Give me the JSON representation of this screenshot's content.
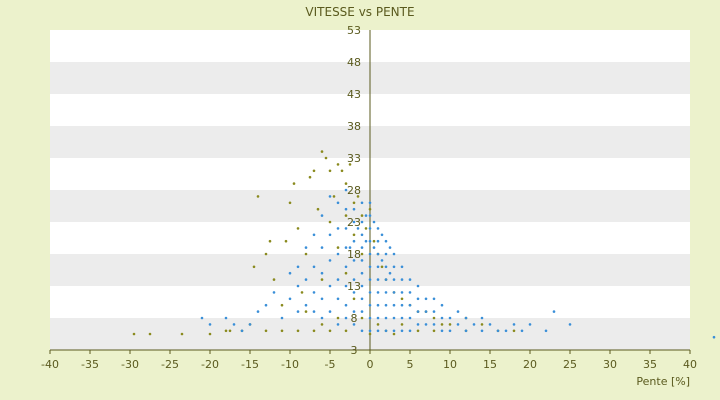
{
  "chart_data": {
    "type": "scatter",
    "title": "VITESSE vs PENTE",
    "xlabel": "Pente [%]",
    "ylabel": "",
    "xlim": [
      -40,
      40
    ],
    "ylim": [
      3,
      53
    ],
    "x_ticks": [
      -40,
      -35,
      -30,
      -25,
      -20,
      -15,
      -10,
      -5,
      0,
      5,
      10,
      15,
      20,
      25,
      30,
      35,
      40
    ],
    "y_ticks": [
      3,
      8,
      13,
      18,
      23,
      28,
      33,
      38,
      43,
      48,
      53
    ],
    "grid": "horizontal alternating bands",
    "legend": "none",
    "colors": {
      "background": "#ecf2cc",
      "band_light": "#ffffff",
      "band_dark": "#ececec",
      "axis": "#5a5a1e",
      "series_blue": "#3a8fd8",
      "series_olive": "#8a8a1e"
    },
    "series": [
      {
        "color": "#8a8a1e",
        "points": [
          [
            -29.5,
            5.5
          ],
          [
            -27.5,
            5.5
          ],
          [
            -23.5,
            5.5
          ],
          [
            -20,
            5.5
          ],
          [
            -17.5,
            6
          ],
          [
            -15,
            7
          ],
          [
            -14.5,
            16
          ],
          [
            -14,
            27
          ],
          [
            -13,
            18
          ],
          [
            -12.5,
            20
          ],
          [
            -12,
            14
          ],
          [
            -11,
            10
          ],
          [
            -10.5,
            20
          ],
          [
            -10,
            26
          ],
          [
            -9.5,
            29
          ],
          [
            -9,
            22
          ],
          [
            -8.5,
            12
          ],
          [
            -8,
            18
          ],
          [
            -7.5,
            30
          ],
          [
            -7,
            31
          ],
          [
            -6.5,
            25
          ],
          [
            -6,
            34
          ],
          [
            -5.5,
            33
          ],
          [
            -5,
            31
          ],
          [
            -5,
            23
          ],
          [
            -4.5,
            27
          ],
          [
            -4,
            19
          ],
          [
            -4,
            32
          ],
          [
            -3.5,
            31
          ],
          [
            -3,
            24
          ],
          [
            -3,
            29
          ],
          [
            -2.5,
            32
          ],
          [
            -2,
            26
          ],
          [
            -2,
            21
          ],
          [
            -1.5,
            27
          ],
          [
            -1,
            24
          ],
          [
            -1,
            18
          ],
          [
            -0.5,
            22
          ],
          [
            0,
            25
          ],
          [
            0.5,
            20
          ],
          [
            1,
            18
          ],
          [
            1.5,
            16
          ],
          [
            2,
            14
          ],
          [
            3,
            12
          ],
          [
            4,
            11
          ],
          [
            5,
            10
          ],
          [
            6,
            9
          ],
          [
            7,
            9
          ],
          [
            8,
            8
          ],
          [
            9,
            7
          ],
          [
            10,
            7
          ],
          [
            12,
            6
          ],
          [
            -6,
            14
          ],
          [
            -8,
            9
          ],
          [
            -3,
            15
          ],
          [
            -2,
            11
          ],
          [
            -1,
            8
          ],
          [
            1,
            7
          ],
          [
            2,
            6
          ],
          [
            3,
            5.5
          ],
          [
            -4,
            8
          ],
          [
            -5,
            6
          ],
          [
            -6,
            7
          ],
          [
            -7,
            6
          ],
          [
            -9,
            6
          ],
          [
            -11,
            6
          ],
          [
            -13,
            6
          ],
          [
            -16,
            6
          ],
          [
            -18,
            6
          ],
          [
            -3,
            6
          ],
          [
            0,
            5.5
          ],
          [
            4,
            7
          ],
          [
            6,
            6
          ],
          [
            8,
            6
          ],
          [
            12,
            8
          ],
          [
            14,
            7
          ],
          [
            16,
            6
          ],
          [
            18,
            6
          ]
        ]
      },
      {
        "color": "#3a8fd8",
        "points": [
          [
            -21,
            8
          ],
          [
            -20,
            7
          ],
          [
            -18,
            8
          ],
          [
            -17,
            7
          ],
          [
            -16,
            6
          ],
          [
            -15,
            7
          ],
          [
            -14,
            9
          ],
          [
            -13,
            10
          ],
          [
            -12,
            12
          ],
          [
            -11,
            8
          ],
          [
            -10,
            11
          ],
          [
            -10,
            15
          ],
          [
            -9,
            9
          ],
          [
            -9,
            13
          ],
          [
            -9,
            16
          ],
          [
            -8,
            10
          ],
          [
            -8,
            14
          ],
          [
            -8,
            19
          ],
          [
            -7,
            9
          ],
          [
            -7,
            12
          ],
          [
            -7,
            16
          ],
          [
            -7,
            21
          ],
          [
            -6,
            8
          ],
          [
            -6,
            11
          ],
          [
            -6,
            15
          ],
          [
            -6,
            19
          ],
          [
            -6,
            24
          ],
          [
            -5,
            9
          ],
          [
            -5,
            13
          ],
          [
            -5,
            17
          ],
          [
            -5,
            21
          ],
          [
            -5,
            27
          ],
          [
            -4,
            7
          ],
          [
            -4,
            11
          ],
          [
            -4,
            14
          ],
          [
            -4,
            18
          ],
          [
            -4,
            22
          ],
          [
            -4,
            26
          ],
          [
            -3,
            8
          ],
          [
            -3,
            10
          ],
          [
            -3,
            13
          ],
          [
            -3,
            16
          ],
          [
            -3,
            19
          ],
          [
            -3,
            22
          ],
          [
            -3,
            25
          ],
          [
            -3,
            28
          ],
          [
            -2,
            7
          ],
          [
            -2,
            9
          ],
          [
            -2,
            12
          ],
          [
            -2,
            14
          ],
          [
            -2,
            17
          ],
          [
            -2,
            20
          ],
          [
            -2,
            23
          ],
          [
            -2,
            25
          ],
          [
            -1,
            6
          ],
          [
            -1,
            9
          ],
          [
            -1,
            11
          ],
          [
            -1,
            13
          ],
          [
            -1,
            15
          ],
          [
            -1,
            17
          ],
          [
            -1,
            19
          ],
          [
            -1,
            21
          ],
          [
            -1,
            23
          ],
          [
            -1,
            26
          ],
          [
            0,
            6
          ],
          [
            0,
            8
          ],
          [
            0,
            10
          ],
          [
            0,
            12
          ],
          [
            0,
            14
          ],
          [
            0,
            16
          ],
          [
            0,
            18
          ],
          [
            0,
            20
          ],
          [
            0,
            22
          ],
          [
            0,
            24
          ],
          [
            0,
            26
          ],
          [
            1,
            6
          ],
          [
            1,
            8
          ],
          [
            1,
            10
          ],
          [
            1,
            12
          ],
          [
            1,
            14
          ],
          [
            1,
            16
          ],
          [
            1,
            18
          ],
          [
            1,
            20
          ],
          [
            1,
            22
          ],
          [
            2,
            6
          ],
          [
            2,
            8
          ],
          [
            2,
            10
          ],
          [
            2,
            12
          ],
          [
            2,
            14
          ],
          [
            2,
            16
          ],
          [
            2,
            18
          ],
          [
            2,
            20
          ],
          [
            3,
            6
          ],
          [
            3,
            8
          ],
          [
            3,
            10
          ],
          [
            3,
            12
          ],
          [
            3,
            14
          ],
          [
            3,
            16
          ],
          [
            3,
            18
          ],
          [
            4,
            6
          ],
          [
            4,
            8
          ],
          [
            4,
            10
          ],
          [
            4,
            12
          ],
          [
            4,
            14
          ],
          [
            4,
            16
          ],
          [
            5,
            6
          ],
          [
            5,
            8
          ],
          [
            5,
            10
          ],
          [
            5,
            12
          ],
          [
            5,
            14
          ],
          [
            6,
            7
          ],
          [
            6,
            9
          ],
          [
            6,
            11
          ],
          [
            6,
            13
          ],
          [
            7,
            7
          ],
          [
            7,
            9
          ],
          [
            7,
            11
          ],
          [
            8,
            7
          ],
          [
            8,
            9
          ],
          [
            8,
            11
          ],
          [
            9,
            6
          ],
          [
            9,
            8
          ],
          [
            9,
            10
          ],
          [
            10,
            6
          ],
          [
            10,
            8
          ],
          [
            11,
            7
          ],
          [
            11,
            9
          ],
          [
            12,
            6
          ],
          [
            12,
            8
          ],
          [
            13,
            7
          ],
          [
            14,
            6
          ],
          [
            14,
            8
          ],
          [
            15,
            7
          ],
          [
            16,
            6
          ],
          [
            17,
            6
          ],
          [
            18,
            7
          ],
          [
            19,
            6
          ],
          [
            20,
            7
          ],
          [
            22,
            6
          ],
          [
            23,
            9
          ],
          [
            25,
            7
          ],
          [
            0.5,
            19
          ],
          [
            0.5,
            23
          ],
          [
            -0.5,
            20
          ],
          [
            -0.5,
            24
          ],
          [
            1.5,
            21
          ],
          [
            1.5,
            17
          ],
          [
            2.5,
            19
          ],
          [
            2.5,
            15
          ],
          [
            -1.5,
            22
          ],
          [
            -2.5,
            19
          ],
          [
            43,
            5
          ]
        ]
      }
    ]
  }
}
